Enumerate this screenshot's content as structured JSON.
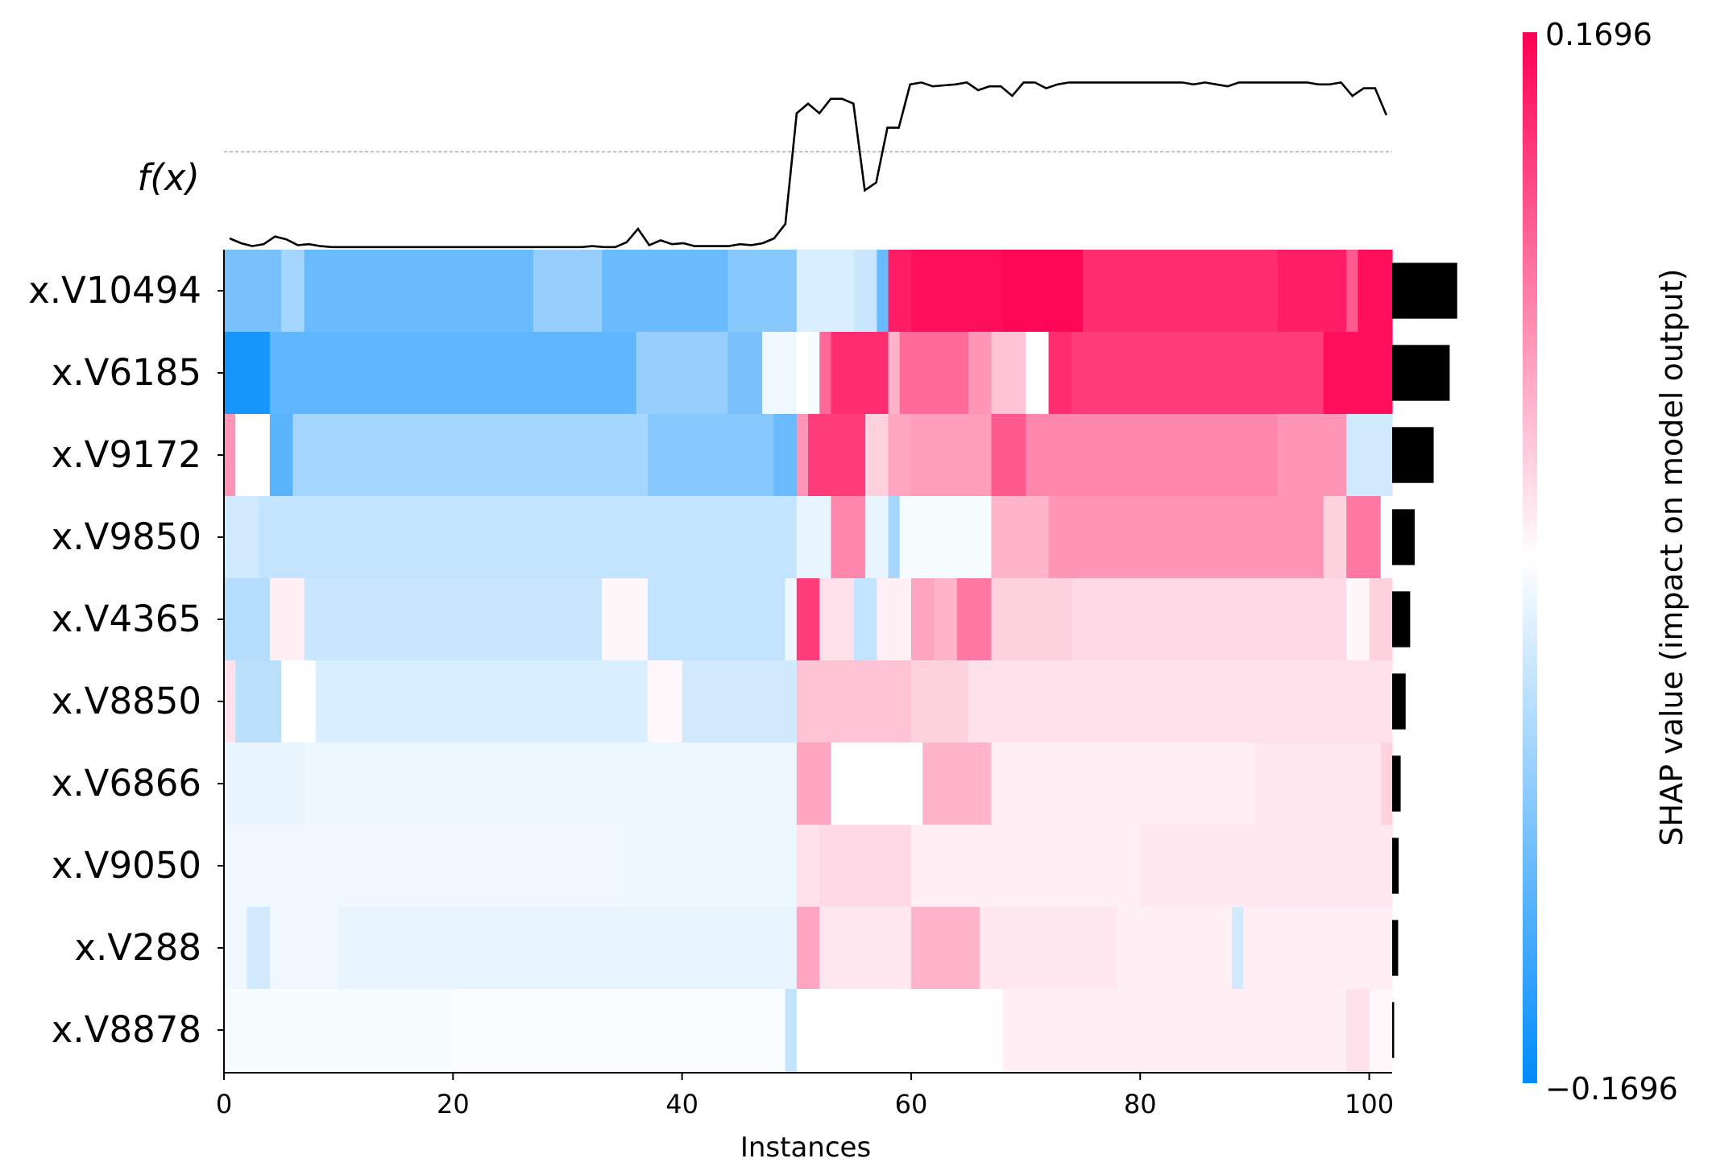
{
  "chart_data": {
    "type": "heatmap",
    "title": "",
    "xlabel": "Instances",
    "fx_label": "f(x)",
    "n_instances": 102,
    "xlim": [
      0,
      102
    ],
    "x_ticks": [
      0,
      20,
      40,
      60,
      80,
      100
    ],
    "features": [
      "x.V10494",
      "x.V6185",
      "x.V9172",
      "x.V9850",
      "x.V4365",
      "x.V8850",
      "x.V6866",
      "x.V9050",
      "x.V288",
      "x.V8878"
    ],
    "mean_abs_shap": [
      0.13,
      0.115,
      0.083,
      0.045,
      0.036,
      0.027,
      0.017,
      0.013,
      0.012,
      0.004
    ],
    "color_scale": {
      "vmin": -0.1696,
      "vmax": 0.1696,
      "min_label": "−0.1696",
      "max_label": "0.1696",
      "low_color": "#008bfb",
      "mid_color": "#ffffff",
      "high_color": "#ff0052"
    },
    "colorbar_label": "SHAP value (impact on model output)",
    "segments": [
      [
        [
          0,
          5,
          -0.09
        ],
        [
          5,
          7,
          -0.06
        ],
        [
          7,
          27,
          -0.1
        ],
        [
          27,
          33,
          -0.07
        ],
        [
          33,
          44,
          -0.1
        ],
        [
          44,
          50,
          -0.08
        ],
        [
          50,
          55,
          -0.025
        ],
        [
          55,
          57,
          -0.035
        ],
        [
          57,
          58,
          -0.1
        ],
        [
          58,
          60,
          0.15
        ],
        [
          60,
          68,
          0.16
        ],
        [
          68,
          75,
          0.165
        ],
        [
          75,
          92,
          0.14
        ],
        [
          92,
          98,
          0.15
        ],
        [
          98,
          99,
          0.11
        ],
        [
          99,
          102,
          0.16
        ]
      ],
      [
        [
          0,
          4,
          -0.155
        ],
        [
          4,
          36,
          -0.105
        ],
        [
          36,
          44,
          -0.07
        ],
        [
          44,
          47,
          -0.09
        ],
        [
          47,
          50,
          -0.01
        ],
        [
          50,
          51,
          0.0
        ],
        [
          51,
          52,
          -0.005
        ],
        [
          52,
          53,
          0.1
        ],
        [
          53,
          58,
          0.14
        ],
        [
          58,
          59,
          0.05
        ],
        [
          59,
          65,
          0.1
        ],
        [
          65,
          67,
          0.07
        ],
        [
          67,
          70,
          0.04
        ],
        [
          70,
          72,
          0.0
        ],
        [
          72,
          74,
          0.14
        ],
        [
          74,
          96,
          0.13
        ],
        [
          96,
          102,
          0.16
        ]
      ],
      [
        [
          0,
          1,
          0.07
        ],
        [
          1,
          4,
          0.0
        ],
        [
          4,
          6,
          -0.11
        ],
        [
          6,
          37,
          -0.06
        ],
        [
          37,
          48,
          -0.08
        ],
        [
          48,
          50,
          -0.1
        ],
        [
          50,
          51,
          0.07
        ],
        [
          51,
          56,
          0.13
        ],
        [
          56,
          58,
          0.03
        ],
        [
          58,
          60,
          0.06
        ],
        [
          60,
          67,
          0.065
        ],
        [
          67,
          70,
          0.11
        ],
        [
          70,
          92,
          0.08
        ],
        [
          92,
          98,
          0.07
        ],
        [
          98,
          102,
          -0.03
        ]
      ],
      [
        [
          0,
          3,
          -0.03
        ],
        [
          3,
          50,
          -0.04
        ],
        [
          50,
          53,
          -0.015
        ],
        [
          53,
          56,
          0.08
        ],
        [
          56,
          58,
          -0.015
        ],
        [
          58,
          59,
          -0.06
        ],
        [
          59,
          67,
          -0.005
        ],
        [
          67,
          72,
          0.05
        ],
        [
          72,
          96,
          0.07
        ],
        [
          96,
          98,
          0.03
        ],
        [
          98,
          101,
          0.09
        ],
        [
          101,
          102,
          0.0
        ]
      ],
      [
        [
          0,
          4,
          -0.05
        ],
        [
          4,
          7,
          0.01
        ],
        [
          7,
          33,
          -0.035
        ],
        [
          33,
          37,
          0.005
        ],
        [
          37,
          49,
          -0.04
        ],
        [
          49,
          50,
          -0.01
        ],
        [
          50,
          52,
          0.13
        ],
        [
          52,
          55,
          0.02
        ],
        [
          55,
          57,
          -0.04
        ],
        [
          57,
          60,
          0.01
        ],
        [
          60,
          62,
          0.06
        ],
        [
          62,
          64,
          0.05
        ],
        [
          64,
          67,
          0.09
        ],
        [
          67,
          74,
          0.03
        ],
        [
          74,
          98,
          0.025
        ],
        [
          98,
          100,
          0.005
        ],
        [
          100,
          102,
          0.03
        ]
      ],
      [
        [
          0,
          1,
          0.02
        ],
        [
          1,
          5,
          -0.045
        ],
        [
          5,
          8,
          0.0
        ],
        [
          8,
          37,
          -0.025
        ],
        [
          37,
          40,
          0.005
        ],
        [
          40,
          50,
          -0.03
        ],
        [
          50,
          60,
          0.04
        ],
        [
          60,
          65,
          0.03
        ],
        [
          65,
          102,
          0.02
        ]
      ],
      [
        [
          0,
          7,
          -0.015
        ],
        [
          7,
          50,
          -0.012
        ],
        [
          50,
          53,
          0.06
        ],
        [
          53,
          61,
          0.0
        ],
        [
          61,
          67,
          0.05
        ],
        [
          67,
          90,
          0.01
        ],
        [
          90,
          101,
          0.015
        ],
        [
          101,
          102,
          0.03
        ]
      ],
      [
        [
          0,
          35,
          -0.01
        ],
        [
          35,
          50,
          -0.012
        ],
        [
          50,
          52,
          0.02
        ],
        [
          52,
          60,
          0.025
        ],
        [
          60,
          80,
          0.01
        ],
        [
          80,
          102,
          0.015
        ]
      ],
      [
        [
          0,
          2,
          -0.01
        ],
        [
          2,
          4,
          -0.03
        ],
        [
          4,
          10,
          -0.01
        ],
        [
          10,
          50,
          -0.015
        ],
        [
          50,
          52,
          0.06
        ],
        [
          52,
          60,
          0.015
        ],
        [
          60,
          66,
          0.05
        ],
        [
          66,
          78,
          0.015
        ],
        [
          78,
          88,
          0.01
        ],
        [
          88,
          89,
          -0.03
        ],
        [
          89,
          102,
          0.012
        ]
      ],
      [
        [
          0,
          20,
          -0.005
        ],
        [
          20,
          49,
          -0.003
        ],
        [
          49,
          50,
          -0.04
        ],
        [
          50,
          68,
          0.0
        ],
        [
          68,
          98,
          0.01
        ],
        [
          98,
          100,
          0.02
        ],
        [
          100,
          102,
          0.005
        ]
      ]
    ],
    "fx_values": [
      0.11,
      0.105,
      0.102,
      0.104,
      0.112,
      0.109,
      0.103,
      0.104,
      0.102,
      0.101,
      0.101,
      0.101,
      0.101,
      0.101,
      0.101,
      0.101,
      0.101,
      0.101,
      0.101,
      0.101,
      0.101,
      0.101,
      0.101,
      0.101,
      0.101,
      0.101,
      0.101,
      0.101,
      0.101,
      0.101,
      0.101,
      0.101,
      0.102,
      0.101,
      0.101,
      0.106,
      0.12,
      0.103,
      0.108,
      0.104,
      0.105,
      0.102,
      0.102,
      0.102,
      0.102,
      0.104,
      0.103,
      0.105,
      0.11,
      0.125,
      0.24,
      0.25,
      0.24,
      0.255,
      0.255,
      0.25,
      0.16,
      0.168,
      0.225,
      0.225,
      0.27,
      0.272,
      0.268,
      0.269,
      0.27,
      0.272,
      0.264,
      0.268,
      0.268,
      0.258,
      0.272,
      0.272,
      0.266,
      0.27,
      0.272,
      0.272,
      0.272,
      0.272,
      0.272,
      0.272,
      0.272,
      0.272,
      0.272,
      0.272,
      0.272,
      0.27,
      0.272,
      0.27,
      0.268,
      0.272,
      0.272,
      0.272,
      0.272,
      0.272,
      0.272,
      0.272,
      0.27,
      0.27,
      0.272,
      0.258,
      0.266,
      0.266,
      0.238
    ],
    "fx_baseline": 0.2
  }
}
